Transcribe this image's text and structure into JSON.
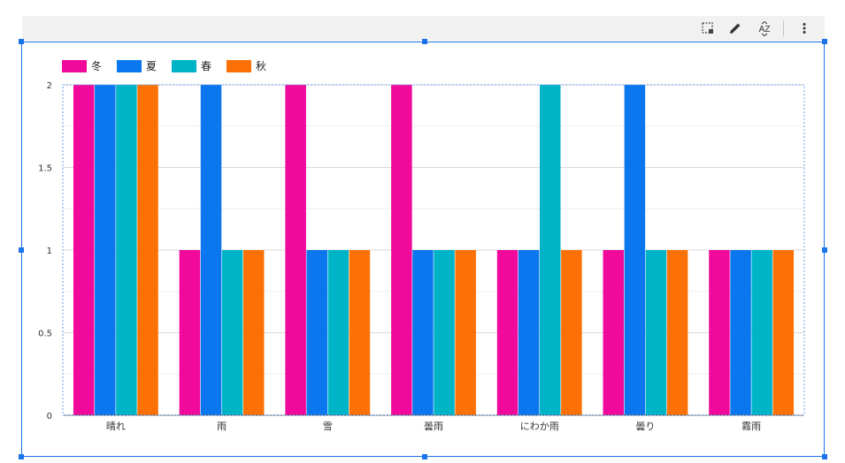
{
  "toolbar": {
    "icons": [
      "select-region-icon",
      "pencil-icon",
      "sort-az-icon",
      "more-vert-icon"
    ],
    "sort_label": "AZ"
  },
  "colors": {
    "selection": "#1a73e8",
    "grid": "#e0e0e0",
    "plot_border": "#6d9eeb"
  },
  "chart_data": {
    "type": "bar",
    "categories": [
      "晴れ",
      "雨",
      "雪",
      "曇雨",
      "にわか雨",
      "曇り",
      "霧雨"
    ],
    "series": [
      {
        "name": "冬",
        "color": "#f0099a",
        "values": [
          2,
          1,
          2,
          2,
          1,
          1,
          1
        ]
      },
      {
        "name": "夏",
        "color": "#0a77ee",
        "values": [
          2,
          2,
          1,
          1,
          1,
          2,
          1
        ]
      },
      {
        "name": "春",
        "color": "#00b4c8",
        "values": [
          2,
          1,
          1,
          1,
          2,
          1,
          1
        ]
      },
      {
        "name": "秋",
        "color": "#fb7105",
        "values": [
          2,
          1,
          1,
          1,
          1,
          1,
          1
        ]
      }
    ],
    "yticks": [
      "0",
      "0.5",
      "1",
      "1.5",
      "2"
    ],
    "ylim": [
      0,
      2
    ],
    "grid": true,
    "legend": "top-left",
    "title": "",
    "xlabel": "",
    "ylabel": ""
  }
}
